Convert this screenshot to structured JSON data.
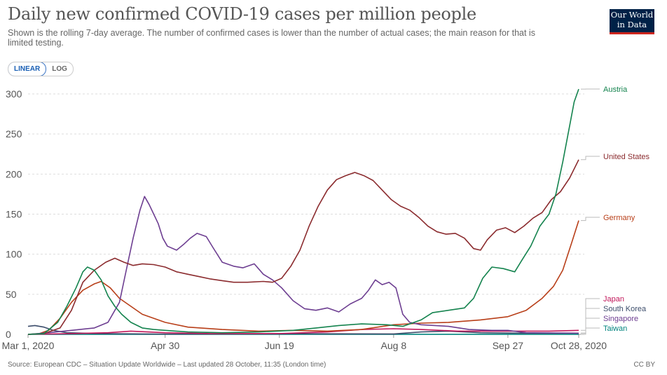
{
  "header": {
    "title": "Daily new confirmed COVID-19 cases per million people",
    "subtitle": "Shown is the rolling 7-day average. The number of confirmed cases is lower than the number of actual cases; the main reason for that is limited testing.",
    "logo_line1": "Our World",
    "logo_line2": "in Data"
  },
  "toggle": {
    "linear_label": "LINEAR",
    "log_label": "LOG",
    "selected": "LINEAR"
  },
  "footer": {
    "source": "Source: European CDC – Situation Update Worldwide – Last updated 28 October, 11:35 (London time)",
    "license": "CC BY"
  },
  "chart_data": {
    "type": "line",
    "title": "Daily new confirmed COVID-19 cases per million people",
    "xlabel": "",
    "ylabel": "",
    "xlim": [
      "2020-03-01",
      "2020-10-28"
    ],
    "ylim": [
      0,
      300
    ],
    "yticks": [
      0,
      50,
      100,
      150,
      200,
      250,
      300
    ],
    "ytick_labels": [
      "0",
      "50",
      "100",
      "150",
      "200",
      "250",
      "300"
    ],
    "xticks": [
      "2020-03-01",
      "2020-04-30",
      "2020-06-19",
      "2020-08-08",
      "2020-09-27",
      "2020-10-28"
    ],
    "xtick_labels": [
      "Mar 1, 2020",
      "Apr 30",
      "Jun 19",
      "Aug 8",
      "Sep 27",
      "Oct 28, 2020"
    ],
    "grid": "horizontal dashed",
    "legend": "right-side labels",
    "series": [
      {
        "name": "Austria",
        "color": "#14834e",
        "points": [
          [
            "2020-03-01",
            0
          ],
          [
            "2020-03-08",
            1
          ],
          [
            "2020-03-14",
            15
          ],
          [
            "2020-03-18",
            35
          ],
          [
            "2020-03-22",
            58
          ],
          [
            "2020-03-25",
            78
          ],
          [
            "2020-03-27",
            84
          ],
          [
            "2020-03-30",
            80
          ],
          [
            "2020-04-02",
            68
          ],
          [
            "2020-04-05",
            48
          ],
          [
            "2020-04-08",
            35
          ],
          [
            "2020-04-11",
            25
          ],
          [
            "2020-04-15",
            15
          ],
          [
            "2020-04-20",
            8
          ],
          [
            "2020-04-25",
            6
          ],
          [
            "2020-04-30",
            5
          ],
          [
            "2020-05-10",
            3
          ],
          [
            "2020-05-25",
            2
          ],
          [
            "2020-06-10",
            3
          ],
          [
            "2020-06-25",
            5
          ],
          [
            "2020-07-05",
            8
          ],
          [
            "2020-07-15",
            11
          ],
          [
            "2020-07-25",
            13
          ],
          [
            "2020-08-05",
            12
          ],
          [
            "2020-08-12",
            10
          ],
          [
            "2020-08-20",
            18
          ],
          [
            "2020-08-25",
            27
          ],
          [
            "2020-09-01",
            30
          ],
          [
            "2020-09-08",
            33
          ],
          [
            "2020-09-12",
            45
          ],
          [
            "2020-09-16",
            70
          ],
          [
            "2020-09-20",
            84
          ],
          [
            "2020-09-25",
            82
          ],
          [
            "2020-09-30",
            78
          ],
          [
            "2020-10-03",
            92
          ],
          [
            "2020-10-07",
            110
          ],
          [
            "2020-10-11",
            135
          ],
          [
            "2020-10-15",
            150
          ],
          [
            "2020-10-18",
            175
          ],
          [
            "2020-10-21",
            215
          ],
          [
            "2020-10-24",
            260
          ],
          [
            "2020-10-26",
            290
          ],
          [
            "2020-10-28",
            306
          ]
        ]
      },
      {
        "name": "United States",
        "color": "#8b2b2e",
        "points": [
          [
            "2020-03-01",
            0
          ],
          [
            "2020-03-08",
            1
          ],
          [
            "2020-03-15",
            8
          ],
          [
            "2020-03-20",
            30
          ],
          [
            "2020-03-25",
            65
          ],
          [
            "2020-03-30",
            80
          ],
          [
            "2020-04-04",
            90
          ],
          [
            "2020-04-08",
            95
          ],
          [
            "2020-04-12",
            90
          ],
          [
            "2020-04-16",
            86
          ],
          [
            "2020-04-20",
            88
          ],
          [
            "2020-04-25",
            87
          ],
          [
            "2020-04-30",
            84
          ],
          [
            "2020-05-05",
            78
          ],
          [
            "2020-05-10",
            75
          ],
          [
            "2020-05-15",
            72
          ],
          [
            "2020-05-20",
            69
          ],
          [
            "2020-05-25",
            67
          ],
          [
            "2020-05-30",
            65
          ],
          [
            "2020-06-05",
            65
          ],
          [
            "2020-06-12",
            66
          ],
          [
            "2020-06-16",
            65
          ],
          [
            "2020-06-20",
            70
          ],
          [
            "2020-06-24",
            85
          ],
          [
            "2020-06-28",
            105
          ],
          [
            "2020-07-02",
            135
          ],
          [
            "2020-07-06",
            160
          ],
          [
            "2020-07-10",
            180
          ],
          [
            "2020-07-14",
            193
          ],
          [
            "2020-07-18",
            198
          ],
          [
            "2020-07-22",
            202
          ],
          [
            "2020-07-26",
            198
          ],
          [
            "2020-07-30",
            192
          ],
          [
            "2020-08-03",
            180
          ],
          [
            "2020-08-07",
            168
          ],
          [
            "2020-08-11",
            160
          ],
          [
            "2020-08-15",
            155
          ],
          [
            "2020-08-19",
            146
          ],
          [
            "2020-08-23",
            135
          ],
          [
            "2020-08-27",
            128
          ],
          [
            "2020-08-31",
            125
          ],
          [
            "2020-09-04",
            126
          ],
          [
            "2020-09-08",
            120
          ],
          [
            "2020-09-12",
            107
          ],
          [
            "2020-09-15",
            105
          ],
          [
            "2020-09-18",
            118
          ],
          [
            "2020-09-22",
            130
          ],
          [
            "2020-09-26",
            133
          ],
          [
            "2020-09-30",
            127
          ],
          [
            "2020-10-04",
            135
          ],
          [
            "2020-10-08",
            145
          ],
          [
            "2020-10-12",
            152
          ],
          [
            "2020-10-16",
            168
          ],
          [
            "2020-10-20",
            178
          ],
          [
            "2020-10-24",
            195
          ],
          [
            "2020-10-28",
            218
          ]
        ]
      },
      {
        "name": "Germany",
        "color": "#b83f19",
        "points": [
          [
            "2020-03-01",
            0
          ],
          [
            "2020-03-06",
            1
          ],
          [
            "2020-03-10",
            5
          ],
          [
            "2020-03-15",
            20
          ],
          [
            "2020-03-20",
            40
          ],
          [
            "2020-03-25",
            55
          ],
          [
            "2020-03-30",
            63
          ],
          [
            "2020-04-02",
            66
          ],
          [
            "2020-04-06",
            58
          ],
          [
            "2020-04-10",
            45
          ],
          [
            "2020-04-15",
            35
          ],
          [
            "2020-04-20",
            25
          ],
          [
            "2020-04-30",
            15
          ],
          [
            "2020-05-10",
            9
          ],
          [
            "2020-05-25",
            6
          ],
          [
            "2020-06-10",
            4
          ],
          [
            "2020-06-25",
            5
          ],
          [
            "2020-07-10",
            4
          ],
          [
            "2020-07-25",
            6
          ],
          [
            "2020-08-08",
            12
          ],
          [
            "2020-08-20",
            14
          ],
          [
            "2020-09-01",
            15
          ],
          [
            "2020-09-15",
            18
          ],
          [
            "2020-09-27",
            22
          ],
          [
            "2020-10-05",
            30
          ],
          [
            "2020-10-12",
            45
          ],
          [
            "2020-10-17",
            60
          ],
          [
            "2020-10-21",
            80
          ],
          [
            "2020-10-25",
            115
          ],
          [
            "2020-10-28",
            142
          ]
        ]
      },
      {
        "name": "Japan",
        "color": "#c2185b",
        "points": [
          [
            "2020-03-01",
            0
          ],
          [
            "2020-03-20",
            1
          ],
          [
            "2020-04-05",
            2
          ],
          [
            "2020-04-15",
            4
          ],
          [
            "2020-04-30",
            2
          ],
          [
            "2020-05-20",
            1
          ],
          [
            "2020-06-19",
            1
          ],
          [
            "2020-07-10",
            3
          ],
          [
            "2020-07-25",
            6
          ],
          [
            "2020-08-08",
            7
          ],
          [
            "2020-08-20",
            6
          ],
          [
            "2020-09-05",
            4
          ],
          [
            "2020-09-27",
            4
          ],
          [
            "2020-10-15",
            4
          ],
          [
            "2020-10-28",
            5
          ]
        ]
      },
      {
        "name": "South Korea",
        "color": "#3c4d6b",
        "points": [
          [
            "2020-03-01",
            10
          ],
          [
            "2020-03-04",
            11
          ],
          [
            "2020-03-08",
            9
          ],
          [
            "2020-03-12",
            5
          ],
          [
            "2020-03-18",
            2
          ],
          [
            "2020-04-01",
            1
          ],
          [
            "2020-05-01",
            0.3
          ],
          [
            "2020-06-19",
            0.8
          ],
          [
            "2020-08-08",
            0.5
          ],
          [
            "2020-08-20",
            3
          ],
          [
            "2020-09-01",
            4
          ],
          [
            "2020-09-15",
            2
          ],
          [
            "2020-10-01",
            1.5
          ],
          [
            "2020-10-28",
            1.5
          ]
        ]
      },
      {
        "name": "Singapore",
        "color": "#6d3e91",
        "points": [
          [
            "2020-03-01",
            0
          ],
          [
            "2020-03-10",
            2
          ],
          [
            "2020-03-20",
            5
          ],
          [
            "2020-03-30",
            8
          ],
          [
            "2020-04-05",
            15
          ],
          [
            "2020-04-10",
            40
          ],
          [
            "2020-04-13",
            80
          ],
          [
            "2020-04-16",
            120
          ],
          [
            "2020-04-19",
            155
          ],
          [
            "2020-04-21",
            172
          ],
          [
            "2020-04-23",
            162
          ],
          [
            "2020-04-25",
            150
          ],
          [
            "2020-04-27",
            138
          ],
          [
            "2020-04-29",
            120
          ],
          [
            "2020-05-01",
            110
          ],
          [
            "2020-05-05",
            105
          ],
          [
            "2020-05-08",
            112
          ],
          [
            "2020-05-11",
            120
          ],
          [
            "2020-05-14",
            126
          ],
          [
            "2020-05-18",
            122
          ],
          [
            "2020-05-21",
            108
          ],
          [
            "2020-05-25",
            90
          ],
          [
            "2020-05-30",
            85
          ],
          [
            "2020-06-03",
            83
          ],
          [
            "2020-06-08",
            88
          ],
          [
            "2020-06-12",
            75
          ],
          [
            "2020-06-16",
            68
          ],
          [
            "2020-06-20",
            58
          ],
          [
            "2020-06-25",
            42
          ],
          [
            "2020-06-30",
            32
          ],
          [
            "2020-07-05",
            30
          ],
          [
            "2020-07-10",
            33
          ],
          [
            "2020-07-15",
            28
          ],
          [
            "2020-07-20",
            38
          ],
          [
            "2020-07-25",
            45
          ],
          [
            "2020-07-28",
            55
          ],
          [
            "2020-07-31",
            68
          ],
          [
            "2020-08-03",
            62
          ],
          [
            "2020-08-06",
            65
          ],
          [
            "2020-08-09",
            58
          ],
          [
            "2020-08-12",
            25
          ],
          [
            "2020-08-15",
            15
          ],
          [
            "2020-08-20",
            12
          ],
          [
            "2020-09-01",
            10
          ],
          [
            "2020-09-10",
            6
          ],
          [
            "2020-09-20",
            5
          ],
          [
            "2020-09-27",
            5
          ],
          [
            "2020-10-05",
            2
          ],
          [
            "2020-10-28",
            1.5
          ]
        ]
      },
      {
        "name": "Taiwan",
        "color": "#00847e",
        "points": [
          [
            "2020-03-01",
            0
          ],
          [
            "2020-10-28",
            0.1
          ]
        ]
      }
    ]
  }
}
